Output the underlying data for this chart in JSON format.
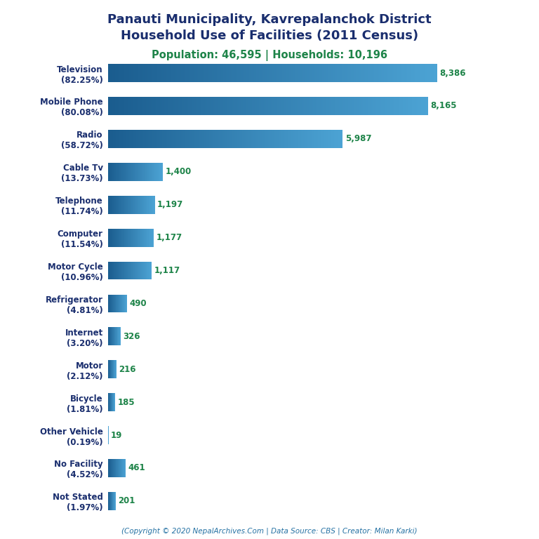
{
  "title_line1": "Panauti Municipality, Kavrepalanchok District",
  "title_line2": "Household Use of Facilities (2011 Census)",
  "subtitle": "Population: 46,595 | Households: 10,196",
  "footer": "(Copyright © 2020 NepalArchives.Com | Data Source: CBS | Creator: Milan Karki)",
  "categories": [
    "Not Stated\n(1.97%)",
    "No Facility\n(4.52%)",
    "Other Vehicle\n(0.19%)",
    "Bicycle\n(1.81%)",
    "Motor\n(2.12%)",
    "Internet\n(3.20%)",
    "Refrigerator\n(4.81%)",
    "Motor Cycle\n(10.96%)",
    "Computer\n(11.54%)",
    "Telephone\n(11.74%)",
    "Cable Tv\n(13.73%)",
    "Radio\n(58.72%)",
    "Mobile Phone\n(80.08%)",
    "Television\n(82.25%)"
  ],
  "values": [
    201,
    461,
    19,
    185,
    216,
    326,
    490,
    1117,
    1177,
    1197,
    1400,
    5987,
    8165,
    8386
  ],
  "bar_color_small": "#2b7bba",
  "bar_color_medium": "#2471a3",
  "bar_color_large": "#2e86c1",
  "title_color": "#1a2e6e",
  "subtitle_color": "#1e8449",
  "footer_color": "#2471a3",
  "value_color": "#1e8449",
  "label_color": "#1a2e6e",
  "xlim": [
    0,
    9200
  ],
  "figsize": [
    7.68,
    7.68
  ],
  "dpi": 100,
  "bar_height": 0.55
}
